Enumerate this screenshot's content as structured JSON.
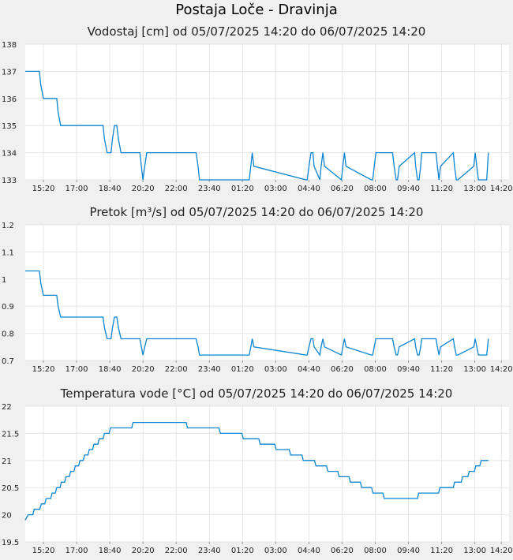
{
  "title": "Postaja Loče - Dravinja",
  "chart_data": [
    {
      "type": "line",
      "title": "Vodostaj [cm] od 05/07/2025 14:20 do 06/07/2025 14:20",
      "xlabel": "",
      "ylabel": "",
      "x_ticks": [
        "15:20",
        "17:00",
        "18:40",
        "20:20",
        "22:00",
        "23:40",
        "01:20",
        "03:00",
        "04:40",
        "06:20",
        "08:00",
        "09:40",
        "11:20",
        "13:00",
        "14:20"
      ],
      "y_ticks": [
        "133",
        "134",
        "135",
        "136",
        "137",
        "138"
      ],
      "ylim": [
        133,
        138
      ],
      "xlim": [
        14.42,
        38.72
      ],
      "grid": true,
      "series": [
        {
          "color": "#0a84d0",
          "x": [
            14.42,
            15.13,
            15.2,
            15.33,
            16.0,
            16.07,
            16.2,
            18.33,
            18.4,
            18.53,
            18.73,
            18.8,
            18.9,
            19.02,
            19.1,
            19.23,
            20.18,
            20.25,
            20.33,
            20.42,
            20.52,
            23.0,
            23.1,
            23.17,
            25.67,
            25.75,
            25.82,
            25.9,
            28.52,
            28.58,
            28.67,
            28.77,
            28.87,
            28.93,
            29.22,
            29.28,
            29.37,
            29.45,
            30.3,
            30.37,
            30.45,
            30.53,
            31.8,
            31.87,
            31.95,
            32.03,
            32.87,
            32.95,
            33.05,
            33.12,
            33.2,
            33.98,
            34.03,
            34.12,
            34.2,
            34.28,
            34.33,
            34.42,
            34.47,
            35.05,
            35.12,
            35.2,
            35.28,
            35.92,
            35.98,
            36.07,
            36.15,
            36.95,
            37.02,
            37.1,
            37.18,
            37.6,
            37.68
          ],
          "y": [
            137,
            137,
            136.5,
            136,
            136,
            135.5,
            135,
            135,
            134.5,
            134,
            134,
            134.5,
            135,
            135,
            134.5,
            134,
            134,
            133.5,
            133,
            133.5,
            134,
            134,
            133.5,
            133,
            133,
            133.5,
            134,
            133.5,
            133,
            133,
            133.5,
            134,
            134,
            133.5,
            133,
            133.5,
            134,
            133.5,
            133,
            133.5,
            134,
            133.5,
            133,
            133,
            133.5,
            134,
            134,
            133.5,
            133,
            133,
            133.5,
            134,
            133.5,
            133,
            133,
            133.5,
            134,
            134,
            134,
            134,
            133.5,
            133,
            133.5,
            134,
            133.5,
            133,
            133,
            133.5,
            134,
            133.5,
            133,
            133,
            134
          ]
        }
      ]
    },
    {
      "type": "line",
      "title": "Pretok [m³/s] od 05/07/2025 14:20 do 06/07/2025 14:20",
      "xlabel": "",
      "ylabel": "",
      "x_ticks": [
        "15:20",
        "17:00",
        "18:40",
        "20:20",
        "22:00",
        "23:40",
        "01:20",
        "03:00",
        "04:40",
        "06:20",
        "08:00",
        "09:40",
        "11:20",
        "13:00",
        "14:20"
      ],
      "y_ticks": [
        "0.7",
        "0.8",
        "0.9",
        "1",
        "1.1",
        "1.2"
      ],
      "ylim": [
        0.7,
        1.2
      ],
      "xlim": [
        14.42,
        38.72
      ],
      "grid": true,
      "series": [
        {
          "color": "#0a84d0",
          "x": [
            14.42,
            15.13,
            15.2,
            15.33,
            16.0,
            16.07,
            16.2,
            18.33,
            18.4,
            18.53,
            18.73,
            18.8,
            18.9,
            19.02,
            19.1,
            19.23,
            20.18,
            20.25,
            20.33,
            20.42,
            20.52,
            23.0,
            23.1,
            23.17,
            25.67,
            25.75,
            25.82,
            25.9,
            28.52,
            28.58,
            28.67,
            28.77,
            28.87,
            28.93,
            29.22,
            29.28,
            29.37,
            29.45,
            30.3,
            30.37,
            30.45,
            30.53,
            31.8,
            31.87,
            31.95,
            32.03,
            32.87,
            32.95,
            33.05,
            33.12,
            33.2,
            33.98,
            34.03,
            34.12,
            34.2,
            34.28,
            34.33,
            34.42,
            34.47,
            35.05,
            35.12,
            35.2,
            35.28,
            35.92,
            35.98,
            36.07,
            36.15,
            36.95,
            37.02,
            37.1,
            37.18,
            37.6,
            37.68
          ],
          "y": [
            1.03,
            1.03,
            0.985,
            0.94,
            0.94,
            0.9,
            0.86,
            0.86,
            0.82,
            0.78,
            0.78,
            0.82,
            0.86,
            0.86,
            0.82,
            0.78,
            0.78,
            0.75,
            0.72,
            0.75,
            0.78,
            0.78,
            0.75,
            0.72,
            0.72,
            0.75,
            0.78,
            0.75,
            0.72,
            0.72,
            0.75,
            0.78,
            0.78,
            0.75,
            0.72,
            0.75,
            0.78,
            0.75,
            0.72,
            0.75,
            0.78,
            0.75,
            0.72,
            0.72,
            0.75,
            0.78,
            0.78,
            0.75,
            0.72,
            0.72,
            0.75,
            0.78,
            0.75,
            0.72,
            0.72,
            0.75,
            0.78,
            0.78,
            0.78,
            0.78,
            0.75,
            0.72,
            0.75,
            0.78,
            0.75,
            0.72,
            0.72,
            0.75,
            0.78,
            0.75,
            0.72,
            0.72,
            0.78
          ]
        }
      ]
    },
    {
      "type": "line",
      "title": "Temperatura vode [°C] od 05/07/2025 14:20 do 06/07/2025 14:20",
      "xlabel": "",
      "ylabel": "",
      "x_ticks": [
        "15:20",
        "17:00",
        "18:40",
        "20:20",
        "22:00",
        "23:40",
        "01:20",
        "03:00",
        "04:40",
        "06:20",
        "08:00",
        "09:40",
        "11:20",
        "13:00",
        "14:20"
      ],
      "y_ticks": [
        "19.5",
        "20",
        "20.5",
        "21",
        "21.5",
        "22"
      ],
      "ylim": [
        19.5,
        22
      ],
      "xlim": [
        14.42,
        38.72
      ],
      "grid": true,
      "series": [
        {
          "color": "#0a84d0",
          "x": [
            14.42,
            14.57,
            14.62,
            14.8,
            14.87,
            15.15,
            15.23,
            15.4,
            15.47,
            15.7,
            15.77,
            15.93,
            16.0,
            16.17,
            16.23,
            16.4,
            16.47,
            16.63,
            16.7,
            16.87,
            16.93,
            17.1,
            17.17,
            17.33,
            17.4,
            17.57,
            17.63,
            17.8,
            17.87,
            18.07,
            18.13,
            18.33,
            18.4,
            18.63,
            18.7,
            18.97,
            19.03,
            19.33,
            19.4,
            19.77,
            19.83,
            20.25,
            20.32,
            21.4,
            21.47,
            22.5,
            22.57,
            24.15,
            24.22,
            25.3,
            25.37,
            26.15,
            26.22,
            26.95,
            27.02,
            27.68,
            27.75,
            28.32,
            28.38,
            28.95,
            29.02,
            29.55,
            29.62,
            30.12,
            30.18,
            30.68,
            30.75,
            31.25,
            31.32,
            31.82,
            31.88,
            32.38,
            32.45,
            33.05,
            33.12,
            34.12,
            34.18,
            35.18,
            35.25,
            35.92,
            35.98,
            36.32,
            36.38,
            36.65,
            36.72,
            36.98,
            37.05,
            37.25,
            37.32,
            37.48,
            37.55,
            37.68
          ],
          "y": [
            19.9,
            20,
            20,
            20,
            20.1,
            20.1,
            20.2,
            20.2,
            20.3,
            20.3,
            20.4,
            20.4,
            20.5,
            20.5,
            20.6,
            20.6,
            20.7,
            20.7,
            20.8,
            20.8,
            20.9,
            20.9,
            21,
            21,
            21.1,
            21.1,
            21.2,
            21.2,
            21.3,
            21.3,
            21.4,
            21.4,
            21.5,
            21.5,
            21.6,
            21.6,
            21.6,
            21.6,
            21.6,
            21.6,
            21.7,
            21.7,
            21.7,
            21.7,
            21.7,
            21.7,
            21.6,
            21.6,
            21.5,
            21.5,
            21.4,
            21.4,
            21.3,
            21.3,
            21.2,
            21.2,
            21.1,
            21.1,
            21,
            21,
            20.9,
            20.9,
            20.8,
            20.8,
            20.7,
            20.7,
            20.6,
            20.6,
            20.5,
            20.5,
            20.4,
            20.4,
            20.3,
            20.3,
            20.3,
            20.3,
            20.4,
            20.4,
            20.5,
            20.5,
            20.6,
            20.6,
            20.7,
            20.7,
            20.8,
            20.8,
            20.9,
            20.9,
            21,
            21,
            21,
            21
          ]
        }
      ]
    }
  ]
}
